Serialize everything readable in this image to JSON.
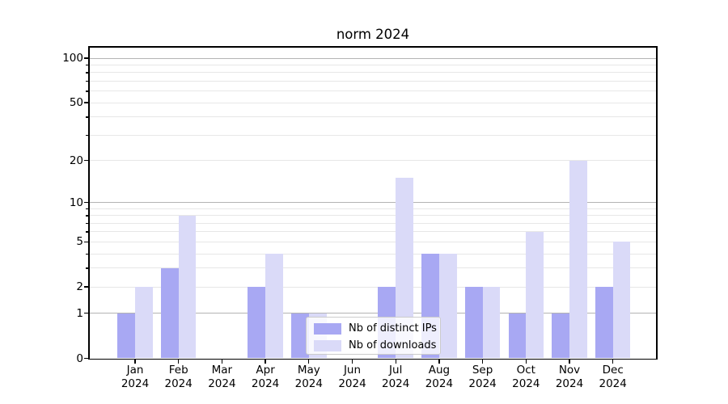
{
  "title": "norm 2024",
  "chart_data": {
    "type": "bar",
    "title": "norm 2024",
    "categories": [
      "Jan 2024",
      "Feb 2024",
      "Mar 2024",
      "Apr 2024",
      "May 2024",
      "Jun 2024",
      "Jul 2024",
      "Aug 2024",
      "Sep 2024",
      "Oct 2024",
      "Nov 2024",
      "Dec 2024"
    ],
    "series": [
      {
        "name": "Nb of distinct IPs",
        "color": "#a8a8f3",
        "values": [
          1,
          3,
          0,
          2,
          1,
          0,
          2,
          4,
          2,
          1,
          1,
          2
        ]
      },
      {
        "name": "Nb of downloads",
        "color": "#dadaf8",
        "values": [
          2,
          8,
          0,
          4,
          1,
          0,
          15,
          4,
          2,
          6,
          20,
          5
        ]
      }
    ],
    "ylabel": "",
    "xlabel": "",
    "yscale": "log1p",
    "ytick_labels": [
      "0",
      "1",
      "2",
      "5",
      "10",
      "20",
      "50",
      "100"
    ],
    "yticks": [
      0,
      1,
      2,
      5,
      10,
      20,
      50,
      100
    ],
    "ylim": [
      0,
      118
    ],
    "grid": "horizontal, minor and major",
    "legend_position": "lower center inside plot"
  },
  "appearance": {
    "background": "#ffffff",
    "bar_color_ips": "#a8a8f3",
    "bar_color_downloads": "#dadaf8",
    "grid_major_color": "#b4b4b4",
    "grid_minor_color": "#e7e7e7",
    "axis_color": "#000000",
    "legend_border_color": "#cccccc"
  }
}
